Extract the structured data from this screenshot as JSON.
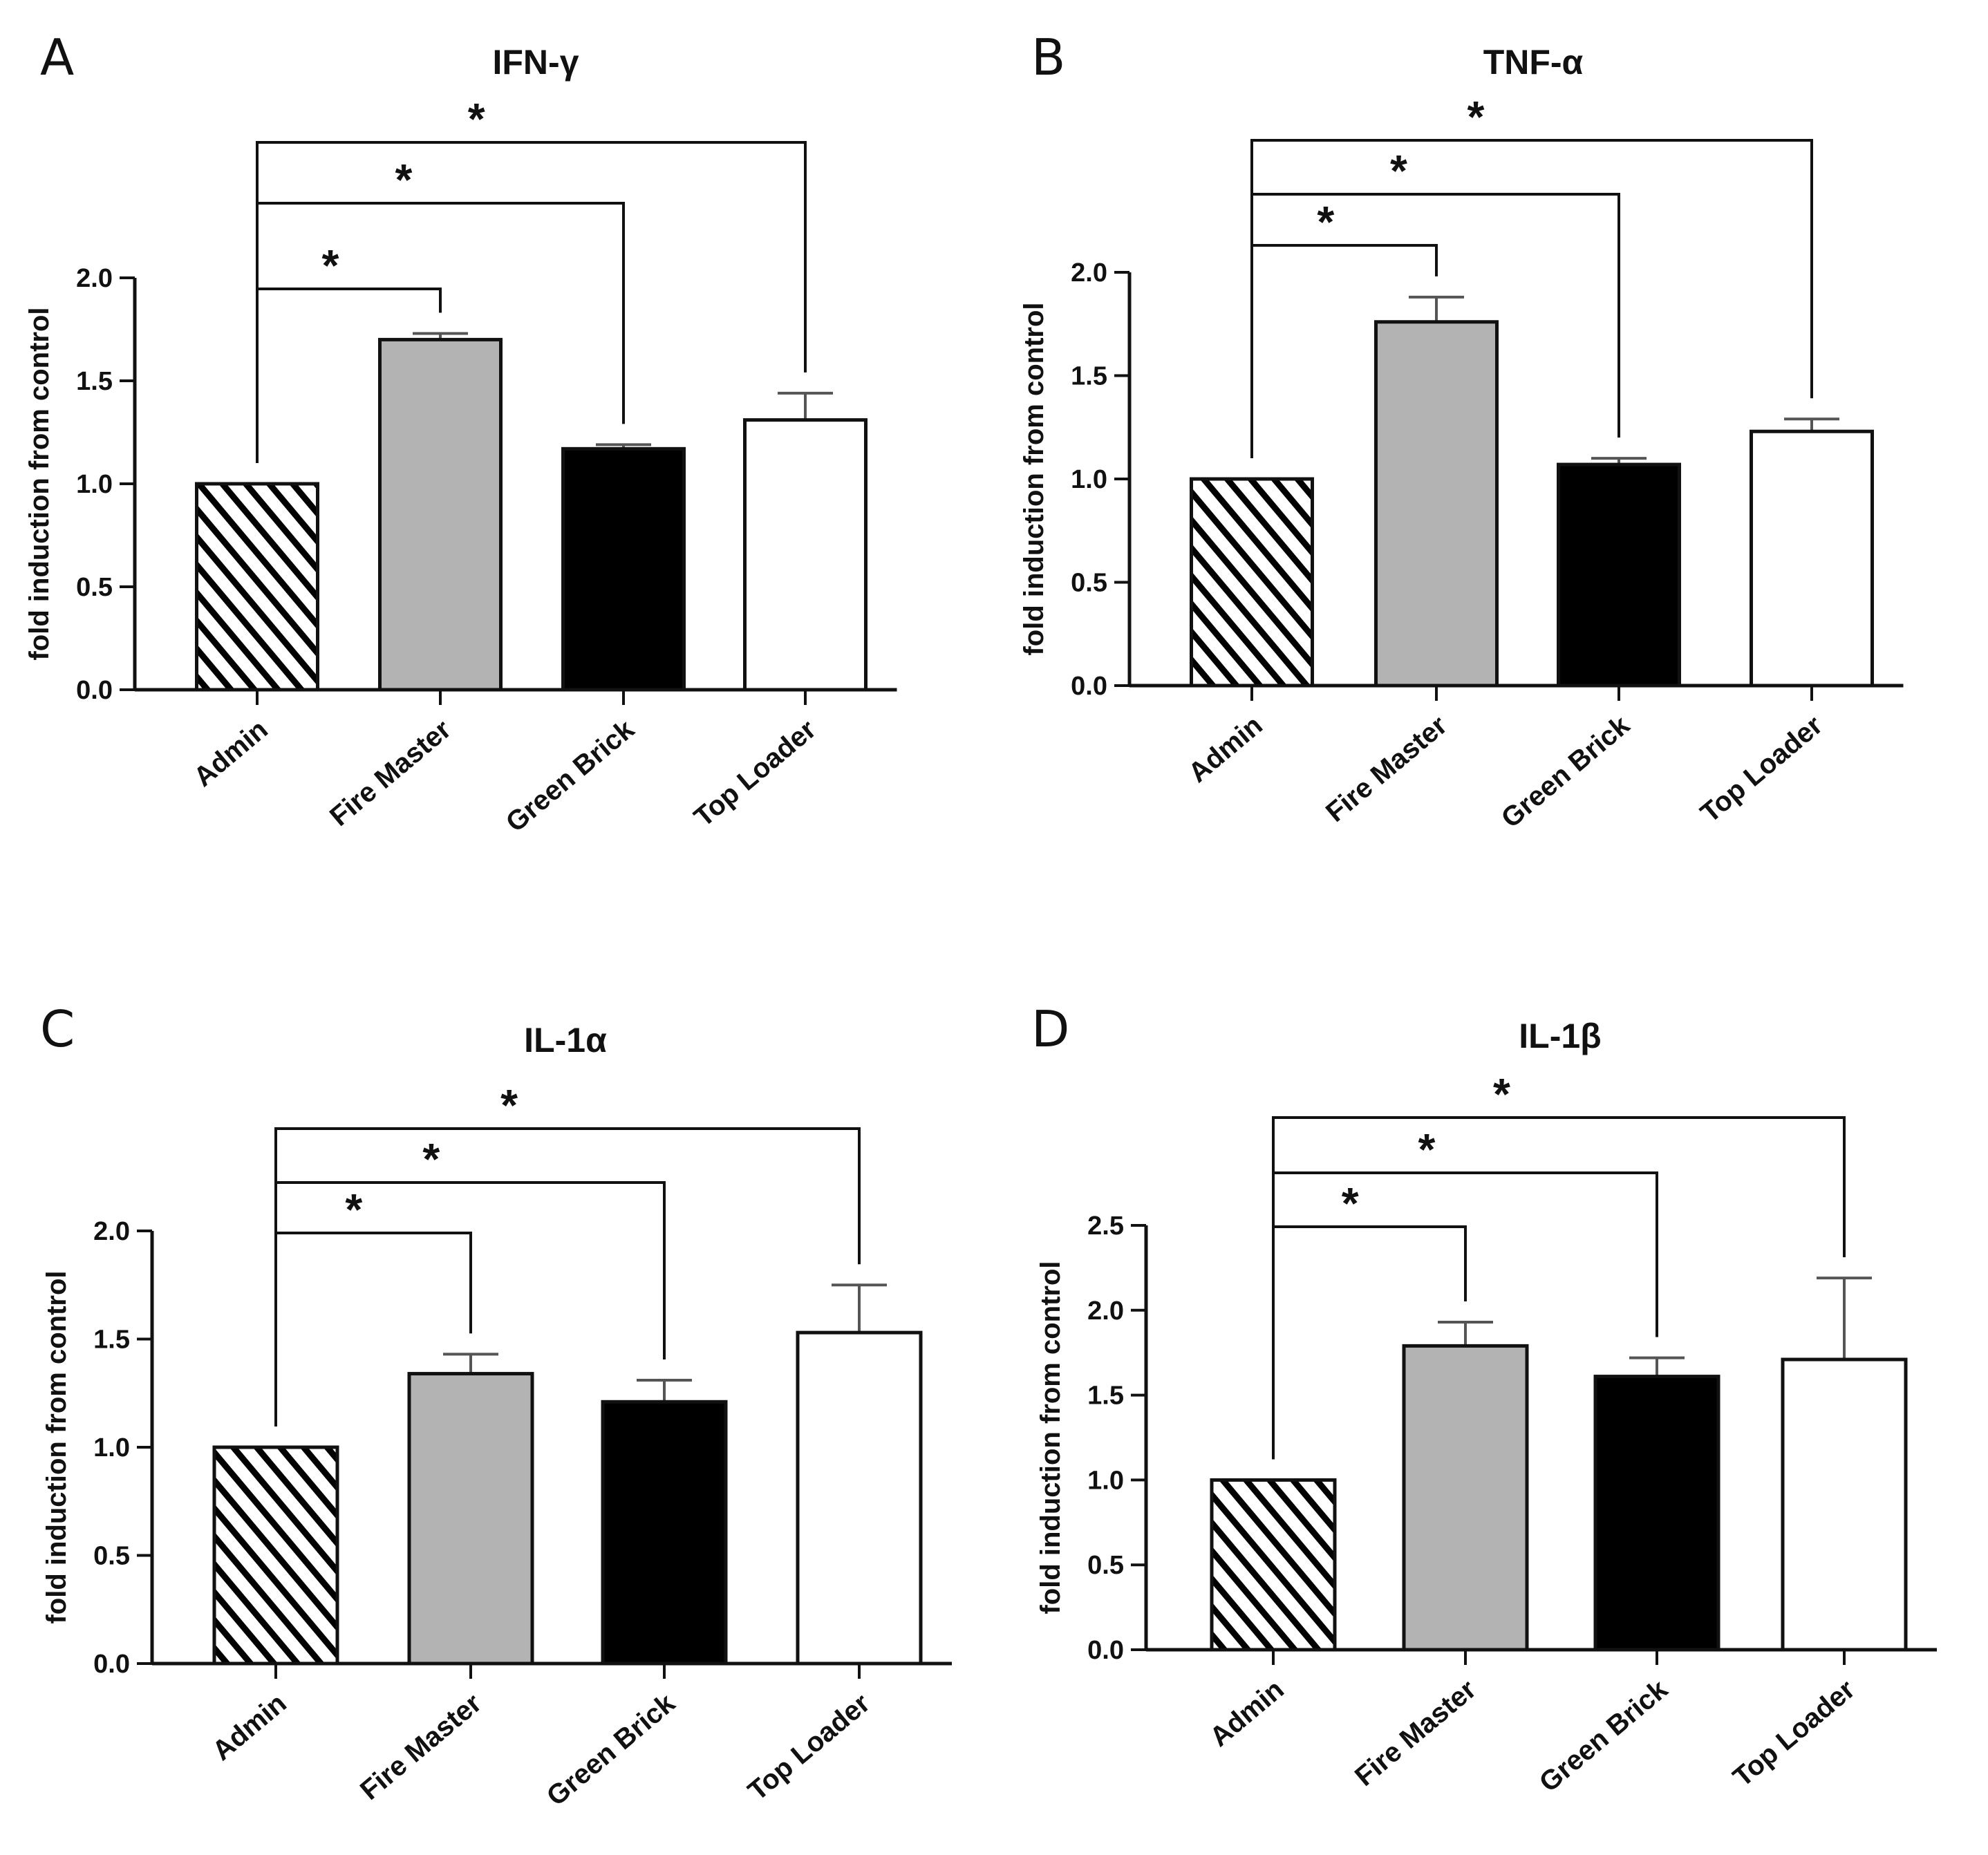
{
  "figure": {
    "panels": [
      "A",
      "B",
      "C",
      "D"
    ]
  },
  "chart_data": [
    {
      "type": "bar",
      "panel": "A",
      "title": "IFN-γ",
      "ylabel": "fold induction from control",
      "xlabel": "",
      "categories": [
        "Admin",
        "Fire Master",
        "Green Brick",
        "Top Loader"
      ],
      "values": [
        1.0,
        1.7,
        1.17,
        1.31
      ],
      "errors": [
        0.0,
        0.03,
        0.02,
        0.13
      ],
      "ylim": [
        0,
        2.0
      ],
      "yticks": [
        "0.0",
        "0.5",
        "1.0",
        "1.5",
        "2.0"
      ],
      "fills": [
        "hatch",
        "#b3b3b3",
        "#000000",
        "#ffffff"
      ],
      "significance": [
        {
          "from": "Admin",
          "to": "Fire Master",
          "label": "*"
        },
        {
          "from": "Admin",
          "to": "Green Brick",
          "label": "*"
        },
        {
          "from": "Admin",
          "to": "Top Loader",
          "label": "*"
        }
      ]
    },
    {
      "type": "bar",
      "panel": "B",
      "title": "TNF-α",
      "ylabel": "fold induction from control",
      "xlabel": "",
      "categories": [
        "Admin",
        "Fire Master",
        "Green Brick",
        "Top Loader"
      ],
      "values": [
        1.0,
        1.76,
        1.07,
        1.23
      ],
      "errors": [
        0.0,
        0.12,
        0.03,
        0.06
      ],
      "ylim": [
        0,
        2.0
      ],
      "yticks": [
        "0.0",
        "0.5",
        "1.0",
        "1.5",
        "2.0"
      ],
      "fills": [
        "hatch",
        "#b3b3b3",
        "#000000",
        "#ffffff"
      ],
      "significance": [
        {
          "from": "Admin",
          "to": "Fire Master",
          "label": "*"
        },
        {
          "from": "Admin",
          "to": "Green Brick",
          "label": "*"
        },
        {
          "from": "Admin",
          "to": "Top Loader",
          "label": "*"
        }
      ]
    },
    {
      "type": "bar",
      "panel": "C",
      "title": "IL-1α",
      "ylabel": "fold induction from control",
      "xlabel": "",
      "categories": [
        "Admin",
        "Fire Master",
        "Green Brick",
        "Top Loader"
      ],
      "values": [
        1.0,
        1.34,
        1.21,
        1.53
      ],
      "errors": [
        0.0,
        0.09,
        0.1,
        0.22
      ],
      "ylim": [
        0,
        2.0
      ],
      "yticks": [
        "0.0",
        "0.5",
        "1.0",
        "1.5",
        "2.0"
      ],
      "fills": [
        "hatch",
        "#b3b3b3",
        "#000000",
        "#ffffff"
      ],
      "significance": [
        {
          "from": "Admin",
          "to": "Fire Master",
          "label": "*"
        },
        {
          "from": "Admin",
          "to": "Green Brick",
          "label": "*"
        },
        {
          "from": "Admin",
          "to": "Top Loader",
          "label": "*"
        }
      ]
    },
    {
      "type": "bar",
      "panel": "D",
      "title": "IL-1β",
      "ylabel": "fold induction from control",
      "xlabel": "",
      "categories": [
        "Admin",
        "Fire Master",
        "Green Brick",
        "Top Loader"
      ],
      "values": [
        1.0,
        1.79,
        1.61,
        1.71
      ],
      "errors": [
        0.0,
        0.14,
        0.11,
        0.48
      ],
      "ylim": [
        0,
        2.5
      ],
      "yticks": [
        "0.0",
        "0.5",
        "1.0",
        "1.5",
        "2.0",
        "2.5"
      ],
      "fills": [
        "hatch",
        "#b3b3b3",
        "#000000",
        "#ffffff"
      ],
      "significance": [
        {
          "from": "Admin",
          "to": "Fire Master",
          "label": "*"
        },
        {
          "from": "Admin",
          "to": "Green Brick",
          "label": "*"
        },
        {
          "from": "Admin",
          "to": "Top Loader",
          "label": "*"
        }
      ]
    }
  ]
}
